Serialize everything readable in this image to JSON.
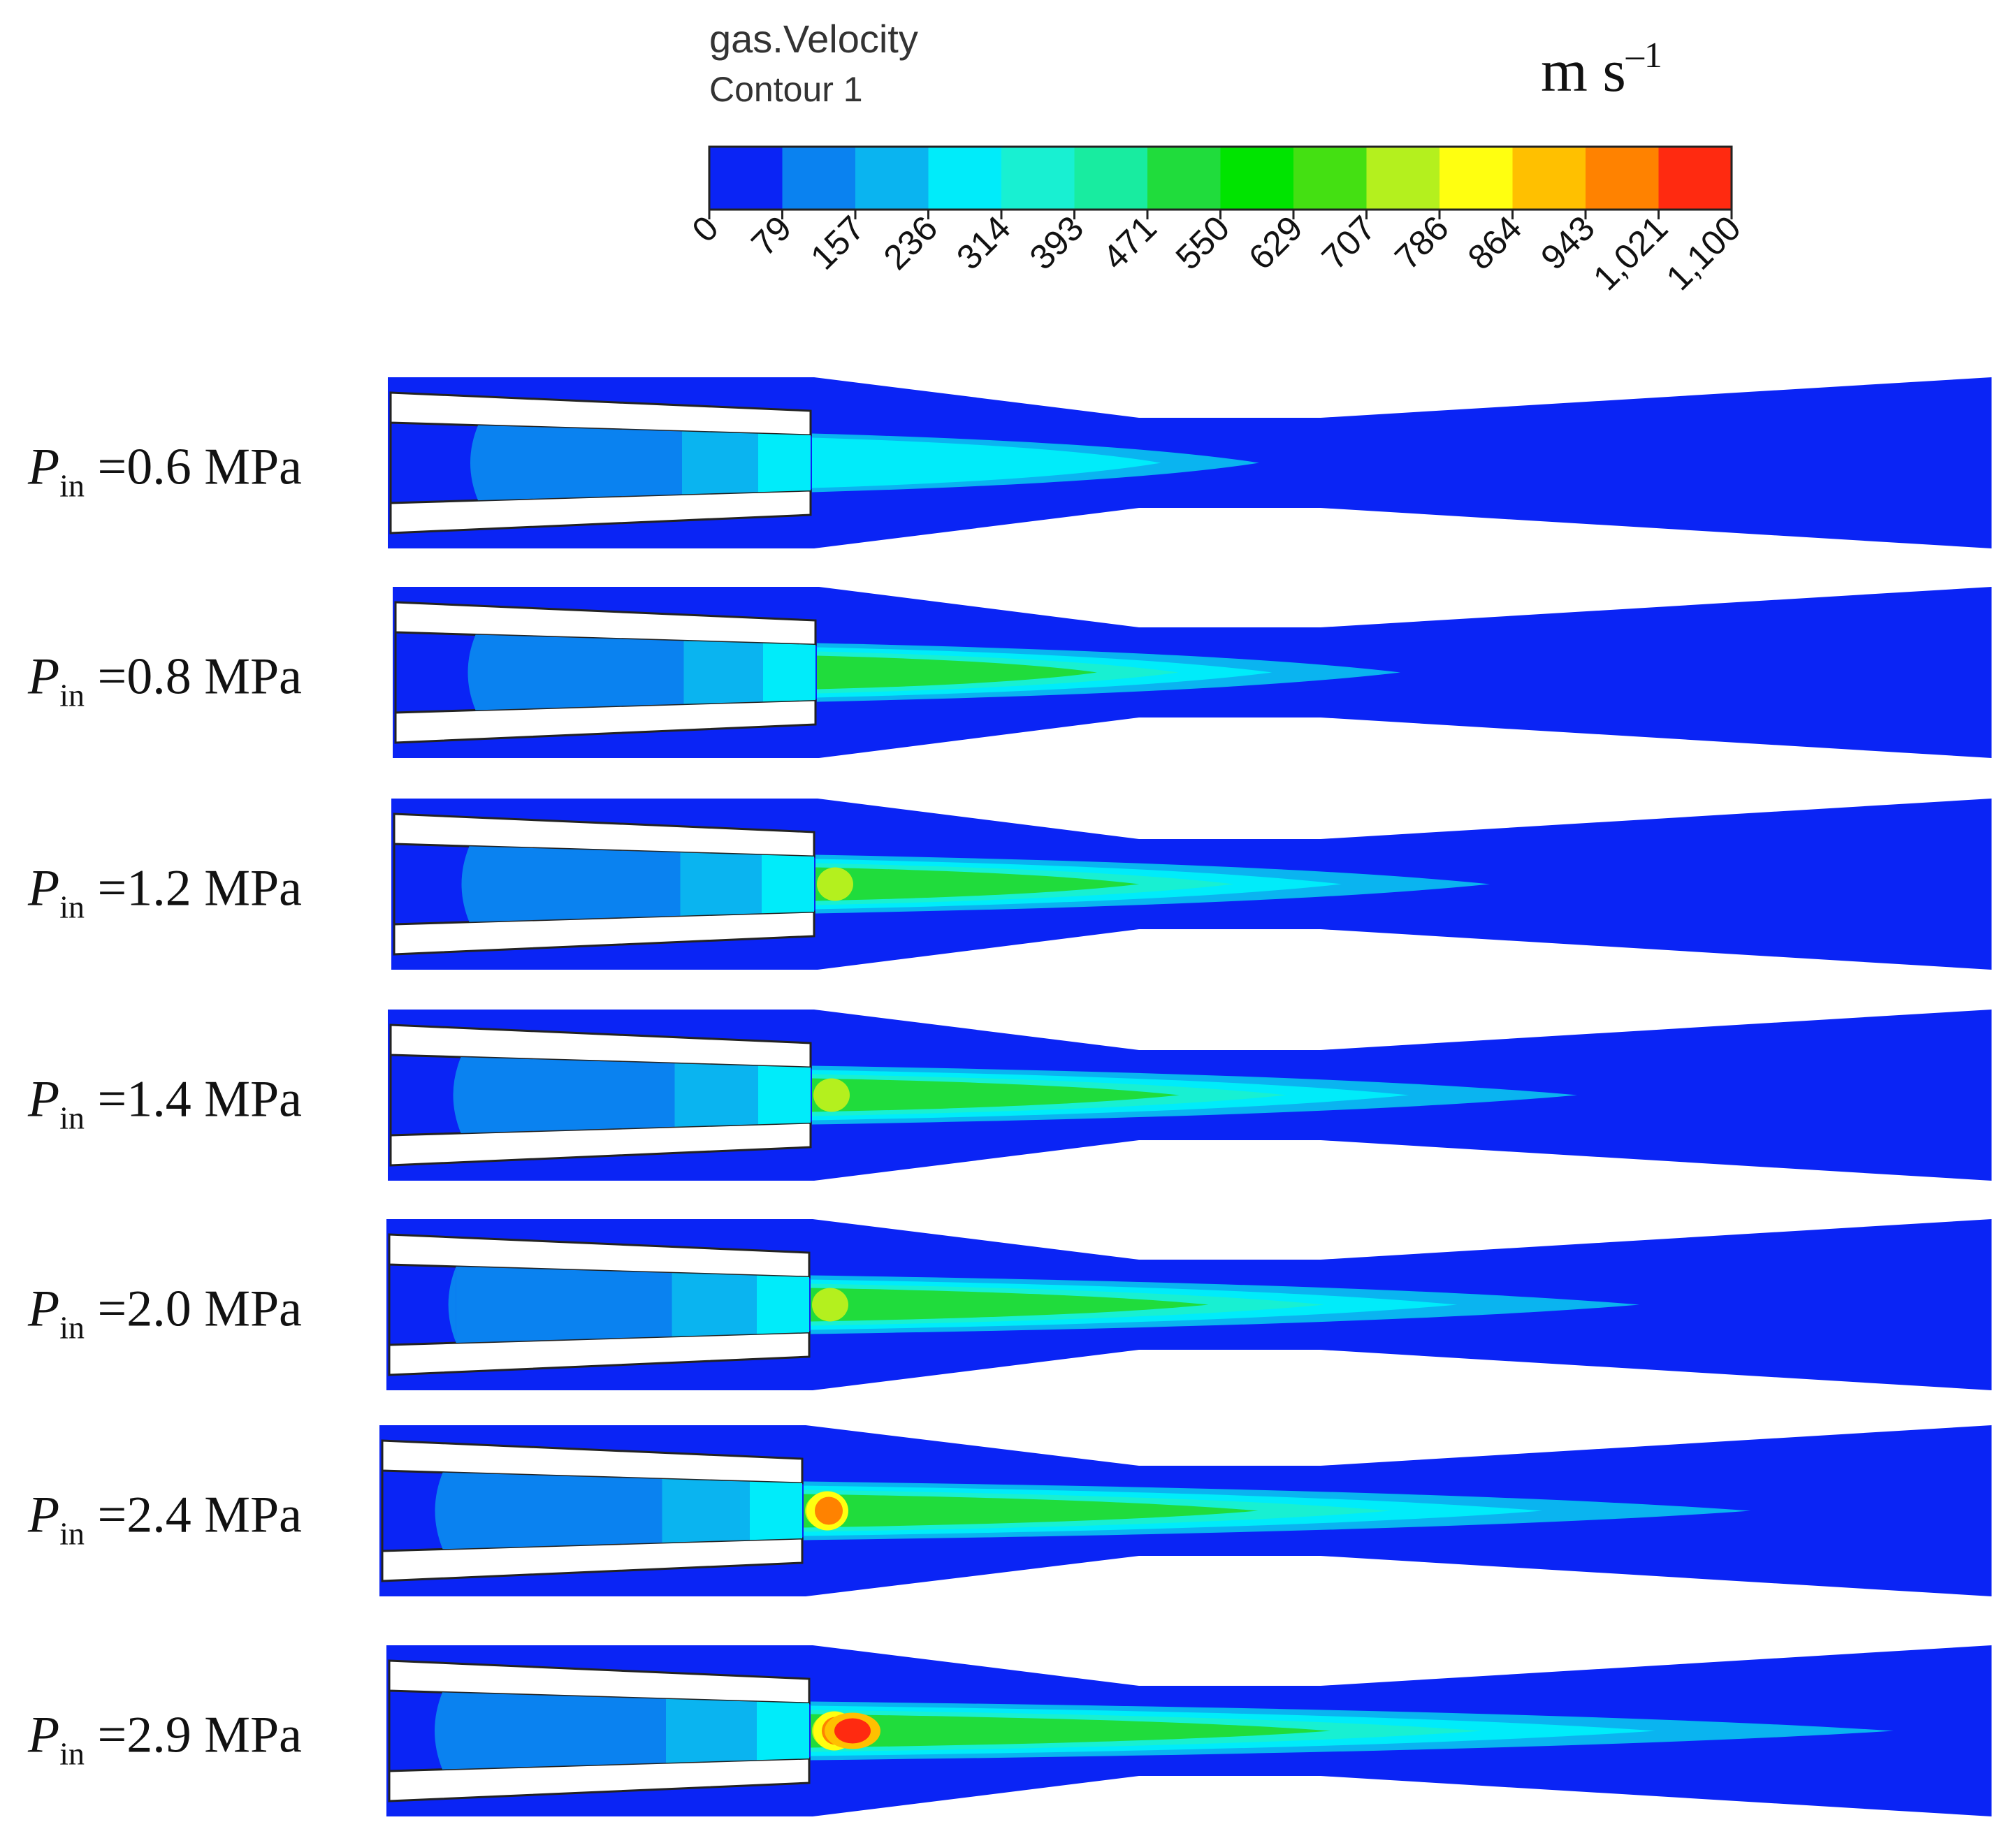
{
  "legend": {
    "title": "gas.Velocity",
    "subtitle": "Contour 1",
    "unit_base": "m s",
    "unit_exp": "–1",
    "ticks": [
      "0",
      "79",
      "157",
      "236",
      "314",
      "393",
      "471",
      "550",
      "629",
      "707",
      "786",
      "864",
      "943",
      "1,021",
      "1,100"
    ],
    "colors": [
      "#0a24f5",
      "#0a82f0",
      "#0ab4f0",
      "#00ecfa",
      "#18f0d2",
      "#18eca0",
      "#20dc3c",
      "#00e400",
      "#44e012",
      "#b4f01e",
      "#ffff10",
      "#ffc000",
      "#ff8200",
      "#ff2a10"
    ]
  },
  "colors": {
    "background": "#0a24f5",
    "white": "#ffffff",
    "outline": "#1a1a1a"
  },
  "cases": [
    {
      "label_p": "P",
      "label_sub": "in",
      "label_rest": " =0.6 MPa",
      "velocity_level": 0.3
    },
    {
      "label_p": "P",
      "label_sub": "in",
      "label_rest": " =0.8 MPa",
      "velocity_level": 0.45
    },
    {
      "label_p": "P",
      "label_sub": "in",
      "label_rest": " =1.2 MPa",
      "velocity_level": 0.55
    },
    {
      "label_p": "P",
      "label_sub": "in",
      "label_rest": " =1.4 MPa",
      "velocity_level": 0.65
    },
    {
      "label_p": "P",
      "label_sub": "in",
      "label_rest": " =2.0 MPa",
      "velocity_level": 0.72
    },
    {
      "label_p": "P",
      "label_sub": "in",
      "label_rest": " =2.4 MPa",
      "velocity_level": 0.85
    },
    {
      "label_p": "P",
      "label_sub": "in",
      "label_rest": " =2.9 MPa",
      "velocity_level": 1.0
    }
  ]
}
